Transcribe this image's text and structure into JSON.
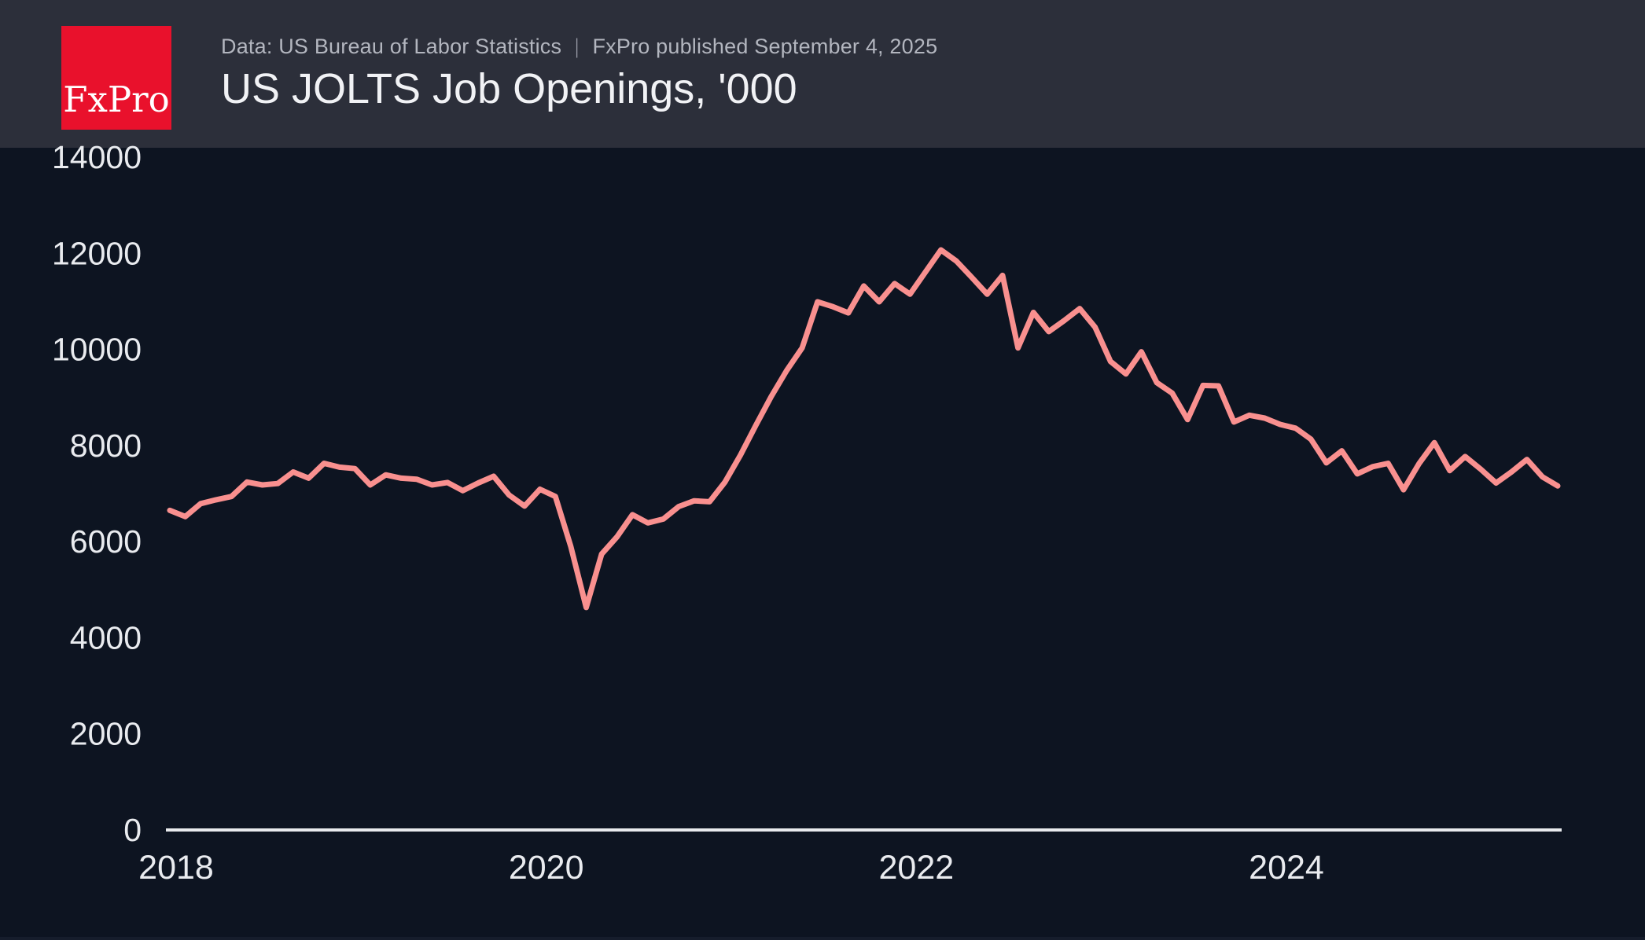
{
  "header": {
    "logo_text": "FxPro",
    "source_note": "Data: US Bureau of Labor Statistics",
    "divider": "|",
    "published_note": "FxPro published September 4, 2025",
    "title": "US JOLTS Job Openings, '000"
  },
  "colors": {
    "page_background": "#0d1421",
    "header_background": "#2c2f3a",
    "logo_background": "#e9112c",
    "logo_text": "#ffffff",
    "subtitle_text": "#b3b6bf",
    "title_text": "#f1f2f5",
    "tick_label": "#e9ebef",
    "axis_line": "#e8eaed",
    "series_line": "#f9908f"
  },
  "chart_data": {
    "type": "line",
    "title": "US JOLTS Job Openings, '000",
    "x_start": "2018-01",
    "x_end": "2025-07",
    "x_frequency": "monthly",
    "ylim": [
      0,
      14000
    ],
    "y_ticks": [
      0,
      2000,
      4000,
      6000,
      8000,
      10000,
      12000,
      14000
    ],
    "x_ticks": [
      {
        "month_index": 0,
        "label": "2018"
      },
      {
        "month_index": 24,
        "label": "2020"
      },
      {
        "month_index": 48,
        "label": "2022"
      },
      {
        "month_index": 72,
        "label": "2024"
      }
    ],
    "grid": false,
    "legend": false,
    "series": [
      {
        "name": "US JOLTS Job Openings ('000)",
        "values": [
          6650,
          6520,
          6790,
          6870,
          6940,
          7240,
          7180,
          7210,
          7450,
          7320,
          7630,
          7550,
          7520,
          7180,
          7390,
          7320,
          7300,
          7180,
          7230,
          7060,
          7220,
          7360,
          6970,
          6740,
          7090,
          6940,
          5900,
          4630,
          5740,
          6100,
          6560,
          6390,
          6470,
          6730,
          6850,
          6830,
          7240,
          7800,
          8420,
          9020,
          9560,
          10030,
          10990,
          10890,
          10760,
          11320,
          10990,
          11370,
          11150,
          11610,
          12070,
          11840,
          11500,
          11150,
          11540,
          10030,
          10770,
          10370,
          10600,
          10850,
          10460,
          9750,
          9490,
          9950,
          9310,
          9090,
          8540,
          9250,
          9240,
          8490,
          8630,
          8570,
          8440,
          8360,
          8130,
          7640,
          7890,
          7410,
          7560,
          7630,
          7080,
          7620,
          8060,
          7480,
          7770,
          7510,
          7220,
          7450,
          7710,
          7350,
          7160
        ]
      }
    ]
  }
}
